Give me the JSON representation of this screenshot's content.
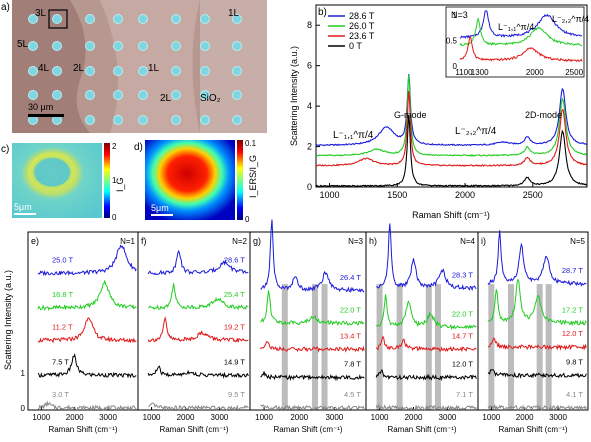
{
  "figure": {
    "panel_labels": [
      "a)",
      "b)",
      "c)",
      "d)",
      "e)",
      "f)",
      "g)",
      "h)",
      "i)"
    ]
  },
  "micrograph": {
    "layer_labels": [
      "3L",
      "1L",
      "5L",
      "4L",
      "2L",
      "1L",
      "2L",
      "SiO₂"
    ],
    "scale_bar": "30 μm"
  },
  "map_c": {
    "scale_bar": "5μm",
    "colorbar_label": "I_G",
    "colorbar_ticks": [
      "0",
      "1",
      "2"
    ]
  },
  "map_d": {
    "scale_bar": "5μm",
    "colorbar_label": "I_ERS/I_G",
    "colorbar_ticks": [
      "0",
      "0.1"
    ]
  },
  "colors": {
    "t28_6": "#1a1adc",
    "t26_0": "#22cc22",
    "t23_6": "#e01818",
    "t0": "#000000",
    "gray": "#888888",
    "bar": "#bcbcbc"
  },
  "chart_data": [
    {
      "panel": "b",
      "type": "line",
      "xlabel": "Raman Shift (cm⁻¹)",
      "ylabel": "Scattering Intensity (a.u.)",
      "xlim": [
        900,
        2900
      ],
      "ylim": [
        0,
        9
      ],
      "xticks": [
        1000,
        1500,
        2000,
        2500
      ],
      "yticks": [
        0,
        2,
        4,
        6,
        8
      ],
      "annotations": [
        "L⁻₁,₁^π/4",
        "G-mode",
        "L⁻₂,₂^π/4",
        "2D-mode"
      ],
      "legend": [
        "28.6 T",
        "26.0 T",
        "23.6 T",
        "0 T"
      ],
      "legend_position": "top-left",
      "series": [
        {
          "name": "28.6 T",
          "color": "#1a1adc",
          "offset": 2.0,
          "peaks": [
            [
              1420,
              0.9,
              70
            ],
            [
              1585,
              3.4,
              14
            ],
            [
              2280,
              0.15,
              60
            ],
            [
              2460,
              0.4,
              25
            ],
            [
              2720,
              2.8,
              28
            ]
          ]
        },
        {
          "name": "26.0 T",
          "color": "#22cc22",
          "offset": 1.5,
          "peaks": [
            [
              1350,
              0.3,
              70
            ],
            [
              1585,
              4.0,
              14
            ],
            [
              2460,
              0.4,
              25
            ],
            [
              2720,
              2.8,
              28
            ]
          ]
        },
        {
          "name": "23.6 T",
          "color": "#e01818",
          "offset": 1.0,
          "peaks": [
            [
              1270,
              0.35,
              70
            ],
            [
              1585,
              3.7,
              14
            ],
            [
              2460,
              0.4,
              25
            ],
            [
              2720,
              2.8,
              28
            ]
          ]
        },
        {
          "name": "0 T",
          "color": "#000000",
          "offset": 0.0,
          "peaks": [
            [
              1585,
              3.5,
              14
            ],
            [
              2460,
              0.4,
              25
            ],
            [
              2720,
              2.7,
              28
            ]
          ]
        }
      ],
      "inset": {
        "label": "N=3",
        "xlim": [
          1050,
          2600
        ],
        "ylim": [
          0,
          1.1
        ],
        "xticks": [
          1100,
          1300,
          2000,
          2500
        ],
        "yticks": [
          0,
          0.5,
          1
        ],
        "annotations": [
          "L⁻₁,₁^π/4",
          "L⁻₂,₂^π/4"
        ]
      }
    },
    {
      "panel": "e",
      "type": "line",
      "title": "N=1",
      "xlabel": "Raman Shift (cm⁻¹)",
      "ylabel": "Scattering Intensity (a.u.)",
      "xlim": [
        600,
        3900
      ],
      "xticks": [
        1000,
        2000,
        3000
      ],
      "yticks": [
        0,
        1
      ],
      "series": [
        {
          "name": "25.0 T",
          "color": "#1a1adc",
          "offset": 6.3,
          "peaks": [
            [
              3400,
              1.3,
              180
            ]
          ]
        },
        {
          "name": "16.8 T",
          "color": "#22cc22",
          "offset": 4.7,
          "peaks": [
            [
              2900,
              1.2,
              160
            ]
          ]
        },
        {
          "name": "11.2 T",
          "color": "#e01818",
          "offset": 3.2,
          "peaks": [
            [
              2420,
              1.1,
              140
            ]
          ]
        },
        {
          "name": "7.5 T",
          "color": "#000000",
          "offset": 1.6,
          "peaks": [
            [
              1980,
              0.9,
              90
            ]
          ]
        },
        {
          "name": "3.0 T",
          "color": "#888888",
          "offset": 0.1,
          "peaks": [
            [
              1200,
              0.2,
              100
            ]
          ]
        }
      ]
    },
    {
      "panel": "f",
      "type": "line",
      "title": "N=2",
      "xlabel": "Raman Shift (cm⁻¹)",
      "xlim": [
        600,
        3900
      ],
      "xticks": [
        1000,
        2000,
        3000
      ],
      "series": [
        {
          "name": "28.6 T",
          "color": "#1a1adc",
          "offset": 6.3,
          "peaks": [
            [
              1800,
              1.1,
              70
            ],
            [
              3150,
              0.5,
              200
            ]
          ]
        },
        {
          "name": "25.4 T",
          "color": "#22cc22",
          "offset": 4.7,
          "peaks": [
            [
              1650,
              1.1,
              60
            ],
            [
              2950,
              0.4,
              200
            ]
          ]
        },
        {
          "name": "19.2 T",
          "color": "#e01818",
          "offset": 3.2,
          "peaks": [
            [
              1400,
              1.0,
              60
            ],
            [
              2500,
              0.35,
              200
            ]
          ]
        },
        {
          "name": "14.9 T",
          "color": "#000000",
          "offset": 1.6,
          "peaks": [
            [
              1200,
              0.4,
              60
            ],
            [
              2100,
              0.15,
              150
            ]
          ]
        },
        {
          "name": "9.5 T",
          "color": "#888888",
          "offset": 0.1,
          "peaks": [
            [
              1050,
              0.15,
              80
            ]
          ]
        }
      ]
    },
    {
      "panel": "g",
      "type": "line",
      "title": "N=3",
      "xlabel": "Raman Shift (cm⁻¹)",
      "xlim": [
        600,
        3900
      ],
      "xticks": [
        1000,
        2000,
        3000
      ],
      "gray_bands": [
        1590,
        2450,
        2720
      ],
      "series": [
        {
          "name": "26.4 T",
          "color": "#1a1adc",
          "offset": 5.5,
          "peaks": [
            [
              1220,
              3.2,
              50
            ],
            [
              1880,
              0.6,
              90
            ],
            [
              2750,
              0.8,
              120
            ]
          ]
        },
        {
          "name": "22.0 T",
          "color": "#22cc22",
          "offset": 4.0,
          "peaks": [
            [
              1130,
              1.6,
              50
            ],
            [
              2400,
              0.3,
              120
            ]
          ]
        },
        {
          "name": "13.4 T",
          "color": "#e01818",
          "offset": 2.8,
          "peaks": [
            [
              1080,
              0.4,
              60
            ]
          ]
        },
        {
          "name": "7.8 T",
          "color": "#000000",
          "offset": 1.5,
          "peaks": [
            [
              1000,
              0.2,
              60
            ]
          ]
        },
        {
          "name": "4.5 T",
          "color": "#888888",
          "offset": 0.1,
          "peaks": [
            [
              950,
              0.1,
              60
            ]
          ]
        }
      ]
    },
    {
      "panel": "h",
      "type": "line",
      "title": "N=4",
      "xlabel": "Raman Shift (cm⁻¹)",
      "xlim": [
        600,
        3900
      ],
      "xticks": [
        1000,
        2000,
        3000
      ],
      "gray_bands": [
        1000,
        1590,
        2450,
        2720
      ],
      "series": [
        {
          "name": "28.3 T",
          "color": "#1a1adc",
          "offset": 5.6,
          "peaks": [
            [
              1300,
              3.0,
              50
            ],
            [
              2000,
              1.3,
              90
            ],
            [
              2850,
              0.8,
              120
            ]
          ]
        },
        {
          "name": "22.0 T",
          "color": "#22cc22",
          "offset": 3.8,
          "peaks": [
            [
              1180,
              1.5,
              50
            ],
            [
              1850,
              1.2,
              90
            ],
            [
              2500,
              0.6,
              120
            ]
          ]
        },
        {
          "name": "14.7 T",
          "color": "#e01818",
          "offset": 2.8,
          "peaks": [
            [
              1100,
              0.5,
              60
            ],
            [
              1700,
              0.4,
              80
            ]
          ]
        },
        {
          "name": "12.0 T",
          "color": "#000000",
          "offset": 1.5,
          "peaks": [
            [
              1050,
              0.3,
              60
            ]
          ]
        },
        {
          "name": "7.1 T",
          "color": "#888888",
          "offset": 0.1,
          "peaks": [
            [
              950,
              0.1,
              60
            ]
          ]
        }
      ]
    },
    {
      "panel": "i",
      "type": "line",
      "title": "N=5",
      "xlabel": "Raman Shift (cm⁻¹)",
      "xlim": [
        600,
        3900
      ],
      "xticks": [
        1000,
        2000,
        3000
      ],
      "gray_bands": [
        1000,
        1590,
        2450,
        2720
      ],
      "series": [
        {
          "name": "28.7 T",
          "color": "#1a1adc",
          "offset": 5.8,
          "peaks": [
            [
              1250,
              2.4,
              50
            ],
            [
              1900,
              1.8,
              80
            ],
            [
              2650,
              1.3,
              110
            ]
          ]
        },
        {
          "name": "17.2 T",
          "color": "#22cc22",
          "offset": 4.0,
          "peaks": [
            [
              1150,
              1.6,
              50
            ],
            [
              1800,
              2.0,
              80
            ],
            [
              2400,
              1.2,
              110
            ]
          ]
        },
        {
          "name": "12.0 T",
          "color": "#e01818",
          "offset": 2.9,
          "peaks": [
            [
              1080,
              0.4,
              60
            ]
          ]
        },
        {
          "name": "9.8 T",
          "color": "#000000",
          "offset": 1.6,
          "peaks": [
            [
              1020,
              0.3,
              60
            ]
          ]
        },
        {
          "name": "4.1 T",
          "color": "#888888",
          "offset": 0.1,
          "peaks": [
            [
              950,
              0.1,
              60
            ]
          ]
        }
      ]
    }
  ]
}
